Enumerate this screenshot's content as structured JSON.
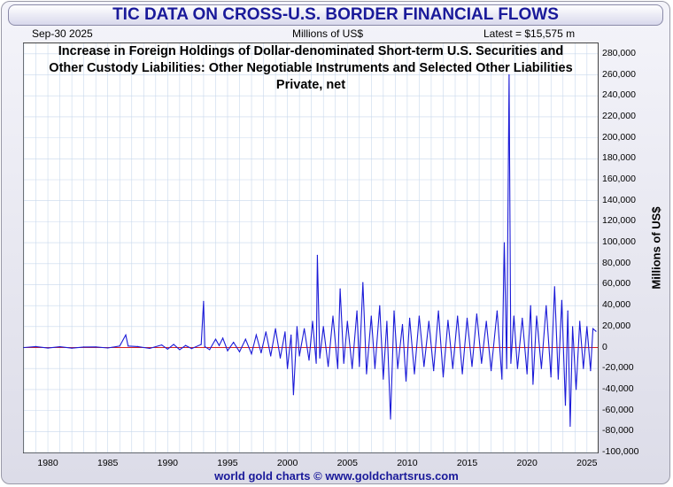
{
  "banner": "TIC DATA ON CROSS-U.S. BORDER FINANCIAL FLOWS",
  "header": {
    "date": "Sep-30  2025",
    "units": "Millions of US$",
    "latest": "Latest = $15,575 m"
  },
  "credit": "world gold charts © www.goldchartsrus.com",
  "colors": {
    "series": "#1a1ad8",
    "zero_line": "#d82020",
    "grid": "#c8d8ec",
    "banner_text": "#1a1a9a"
  },
  "chart_data": {
    "type": "line",
    "title_lines": [
      "Increase in Foreign Holdings of Dollar-denominated Short-term U.S. Securities and",
      "Other Custody Liabilities: Other Negotiable Instruments and Selected Other Liabilities",
      "Private, net"
    ],
    "xlabel": "",
    "ylabel": "Millions of US$",
    "xlim": [
      1978,
      2025.9
    ],
    "ylim": [
      -100000,
      290000
    ],
    "x_ticks": [
      "1980",
      "1985",
      "1990",
      "1995",
      "2000",
      "2005",
      "2010",
      "2015",
      "2020",
      "2025"
    ],
    "y_ticks": [
      "280,000",
      "260,000",
      "240,000",
      "220,000",
      "200,000",
      "180,000",
      "160,000",
      "140,000",
      "120,000",
      "100,000",
      "80,000",
      "60,000",
      "40,000",
      "20,000",
      "0",
      "-20,000",
      "-40,000",
      "-60,000",
      "-80,000",
      "-100,000"
    ],
    "grid": true,
    "series": [
      {
        "points": [
          [
            1978.0,
            0
          ],
          [
            1979.0,
            1000
          ],
          [
            1980.0,
            -500
          ],
          [
            1981.0,
            800
          ],
          [
            1982.0,
            -600
          ],
          [
            1983.0,
            500
          ],
          [
            1984.0,
            600
          ],
          [
            1985.0,
            -400
          ],
          [
            1986.0,
            1500
          ],
          [
            1986.5,
            12000
          ],
          [
            1986.7,
            1500
          ],
          [
            1987.5,
            1000
          ],
          [
            1988.5,
            -800
          ],
          [
            1989.5,
            2500
          ],
          [
            1990.0,
            -1500
          ],
          [
            1990.5,
            3000
          ],
          [
            1991.0,
            -2000
          ],
          [
            1991.5,
            2000
          ],
          [
            1992.0,
            -1000
          ],
          [
            1992.8,
            3000
          ],
          [
            1993.0,
            44000
          ],
          [
            1993.1,
            1000
          ],
          [
            1993.5,
            -2000
          ],
          [
            1994.0,
            8000
          ],
          [
            1994.3,
            2000
          ],
          [
            1994.6,
            9000
          ],
          [
            1995.0,
            -3000
          ],
          [
            1995.5,
            5000
          ],
          [
            1996.0,
            -4000
          ],
          [
            1996.5,
            8000
          ],
          [
            1997.0,
            -6000
          ],
          [
            1997.4,
            12000
          ],
          [
            1997.8,
            -5000
          ],
          [
            1998.2,
            15000
          ],
          [
            1998.6,
            -8000
          ],
          [
            1999.0,
            18000
          ],
          [
            1999.4,
            -10000
          ],
          [
            1999.8,
            15000
          ],
          [
            2000.0,
            -20000
          ],
          [
            2000.3,
            12000
          ],
          [
            2000.5,
            -45000
          ],
          [
            2000.8,
            20000
          ],
          [
            2001.0,
            -8000
          ],
          [
            2001.4,
            18000
          ],
          [
            2001.8,
            -12000
          ],
          [
            2002.1,
            25000
          ],
          [
            2002.4,
            -15000
          ],
          [
            2002.5,
            88000
          ],
          [
            2002.7,
            -10000
          ],
          [
            2003.0,
            20000
          ],
          [
            2003.4,
            -18000
          ],
          [
            2003.8,
            30000
          ],
          [
            2004.2,
            -20000
          ],
          [
            2004.4,
            56000
          ],
          [
            2004.7,
            -15000
          ],
          [
            2005.0,
            25000
          ],
          [
            2005.4,
            -20000
          ],
          [
            2005.8,
            35000
          ],
          [
            2006.0,
            -18000
          ],
          [
            2006.3,
            62000
          ],
          [
            2006.6,
            -25000
          ],
          [
            2007.0,
            30000
          ],
          [
            2007.3,
            -20000
          ],
          [
            2007.7,
            40000
          ],
          [
            2008.0,
            -30000
          ],
          [
            2008.3,
            25000
          ],
          [
            2008.6,
            -68000
          ],
          [
            2008.9,
            35000
          ],
          [
            2009.2,
            -20000
          ],
          [
            2009.6,
            22000
          ],
          [
            2009.9,
            -32000
          ],
          [
            2010.2,
            28000
          ],
          [
            2010.6,
            -25000
          ],
          [
            2011.0,
            30000
          ],
          [
            2011.4,
            -18000
          ],
          [
            2011.8,
            25000
          ],
          [
            2012.2,
            -22000
          ],
          [
            2012.6,
            35000
          ],
          [
            2013.0,
            -28000
          ],
          [
            2013.4,
            26000
          ],
          [
            2013.8,
            -20000
          ],
          [
            2014.2,
            30000
          ],
          [
            2014.6,
            -25000
          ],
          [
            2015.0,
            28000
          ],
          [
            2015.4,
            -18000
          ],
          [
            2015.8,
            32000
          ],
          [
            2016.2,
            -15000
          ],
          [
            2016.6,
            25000
          ],
          [
            2017.0,
            -22000
          ],
          [
            2017.5,
            35000
          ],
          [
            2017.9,
            -30000
          ],
          [
            2018.1,
            100000
          ],
          [
            2018.3,
            -20000
          ],
          [
            2018.5,
            260000
          ],
          [
            2018.65,
            -15000
          ],
          [
            2018.9,
            30000
          ],
          [
            2019.2,
            -20000
          ],
          [
            2019.6,
            28000
          ],
          [
            2020.0,
            -25000
          ],
          [
            2020.3,
            40000
          ],
          [
            2020.5,
            -35000
          ],
          [
            2020.8,
            30000
          ],
          [
            2021.2,
            -20000
          ],
          [
            2021.6,
            40000
          ],
          [
            2022.0,
            -28000
          ],
          [
            2022.3,
            58000
          ],
          [
            2022.6,
            -30000
          ],
          [
            2022.9,
            45000
          ],
          [
            2023.2,
            -55000
          ],
          [
            2023.4,
            35000
          ],
          [
            2023.6,
            -75000
          ],
          [
            2023.8,
            20000
          ],
          [
            2024.1,
            -40000
          ],
          [
            2024.4,
            25000
          ],
          [
            2024.7,
            -20000
          ],
          [
            2025.0,
            20000
          ],
          [
            2025.3,
            -22000
          ],
          [
            2025.5,
            18000
          ],
          [
            2025.75,
            15575
          ]
        ]
      }
    ]
  }
}
